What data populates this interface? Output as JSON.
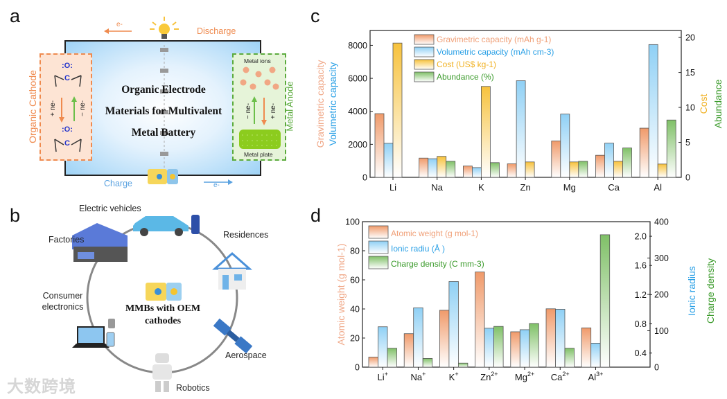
{
  "panel_a": {
    "letter": "a",
    "discharge": "Discharge",
    "charge": "Charge",
    "electron": "e-",
    "cathode_label": "Organic Cathode",
    "anode_label": "Metal Anode",
    "title_lines": [
      "Organic Electrode",
      "Materials for Multivalent",
      "Metal Battery"
    ],
    "cathode_reaction": {
      "reduce": "+ ne-",
      "oxidize": "− ne-",
      "oxygen": ":O:",
      "carbon": "C"
    },
    "anode_reaction": {
      "oxidize": "− ne-",
      "reduce": "+ ne-"
    },
    "metal_ions": "Metal ions",
    "metal_plate": "Metal plate"
  },
  "panel_b": {
    "letter": "b",
    "center_text": [
      "MMBs with OEM",
      "cathodes"
    ],
    "applications": [
      "Electric vehicles",
      "Residences",
      "Aerospace",
      "Robotics",
      "Consumer electronics",
      "Factories"
    ]
  },
  "watermark": "大数跨境",
  "colors": {
    "orange": "#f2a27a",
    "blue": "#3aa9e8",
    "yellow": "#f7c23c",
    "green": "#4aa33a"
  },
  "chart_data": [
    {
      "panel": "c",
      "type": "bar",
      "categories": [
        "Li",
        "Na",
        "K",
        "Zn",
        "Mg",
        "Ca",
        "Al"
      ],
      "left_axis": {
        "labels": [
          "Gravimetric capacity",
          "Volumetric capacity"
        ],
        "ylim": [
          0,
          8900
        ],
        "ticks": [
          "0",
          "2000",
          "4000",
          "6000",
          "8000"
        ]
      },
      "right_axis": {
        "labels": [
          "Cost",
          "Abundance"
        ],
        "ylim": [
          0,
          21
        ],
        "ticks": [
          "0",
          "5",
          "10",
          "15",
          "20"
        ]
      },
      "series": [
        {
          "name": "Gravimetric capacity (mAh g-1)",
          "axis": "left",
          "color": "#f09a6a",
          "values": [
            3860,
            1166,
            685,
            820,
            2205,
            1337,
            2980
          ]
        },
        {
          "name": "Volumetric capacity (mAh cm-3)",
          "axis": "left",
          "color": "#8fd0f5",
          "values": [
            2062,
            1128,
            591,
            5855,
            3833,
            2073,
            8046
          ]
        },
        {
          "name": "Cost (US$ kg-1)",
          "axis": "right",
          "color": "#f7c23c",
          "values": [
            19.2,
            3.0,
            13.0,
            2.2,
            2.2,
            2.3,
            1.9
          ]
        },
        {
          "name": "Abundance (%)",
          "axis": "right",
          "color": "#7fc067",
          "values": [
            null,
            2.3,
            2.1,
            null,
            2.3,
            4.2,
            8.2
          ]
        }
      ],
      "legend": "top-left"
    },
    {
      "panel": "d",
      "type": "bar",
      "categories": [
        "Li+",
        "Na+",
        "K+",
        "Zn2+",
        "Mg2+",
        "Ca2+",
        "Al3+"
      ],
      "left_axis": {
        "label": "Atomic weight (g mol-1)",
        "ylim": [
          0,
          100
        ],
        "ticks": [
          "0",
          "20",
          "40",
          "60",
          "80",
          "100"
        ]
      },
      "radius_axis": {
        "label": "Ionic radius",
        "ylim": [
          0.207,
          2.2
        ],
        "ticks": [
          "0.4",
          "0.8",
          "1.2",
          "1.6",
          "2.0"
        ]
      },
      "charge_axis": {
        "label": "Charge density",
        "ylim": [
          0,
          400
        ],
        "ticks": [
          "0",
          "100",
          "200",
          "300",
          "400"
        ]
      },
      "series": [
        {
          "name": "Atomic weight (g mol-1)",
          "axis": "left",
          "color": "#f09a6a",
          "values": [
            6.9,
            23.0,
            39.1,
            65.4,
            24.3,
            40.1,
            27.0
          ]
        },
        {
          "name": "Ionic radiu (Å )",
          "axis": "radius",
          "color": "#8fd0f5",
          "values": [
            0.76,
            1.02,
            1.38,
            0.74,
            0.72,
            1.0,
            0.535
          ]
        },
        {
          "name": "Charge density (C mm-3)",
          "axis": "charge",
          "color": "#7fc067",
          "values": [
            52,
            24,
            11,
            112,
            120,
            52,
            364
          ]
        }
      ],
      "legend": "top-left"
    }
  ]
}
